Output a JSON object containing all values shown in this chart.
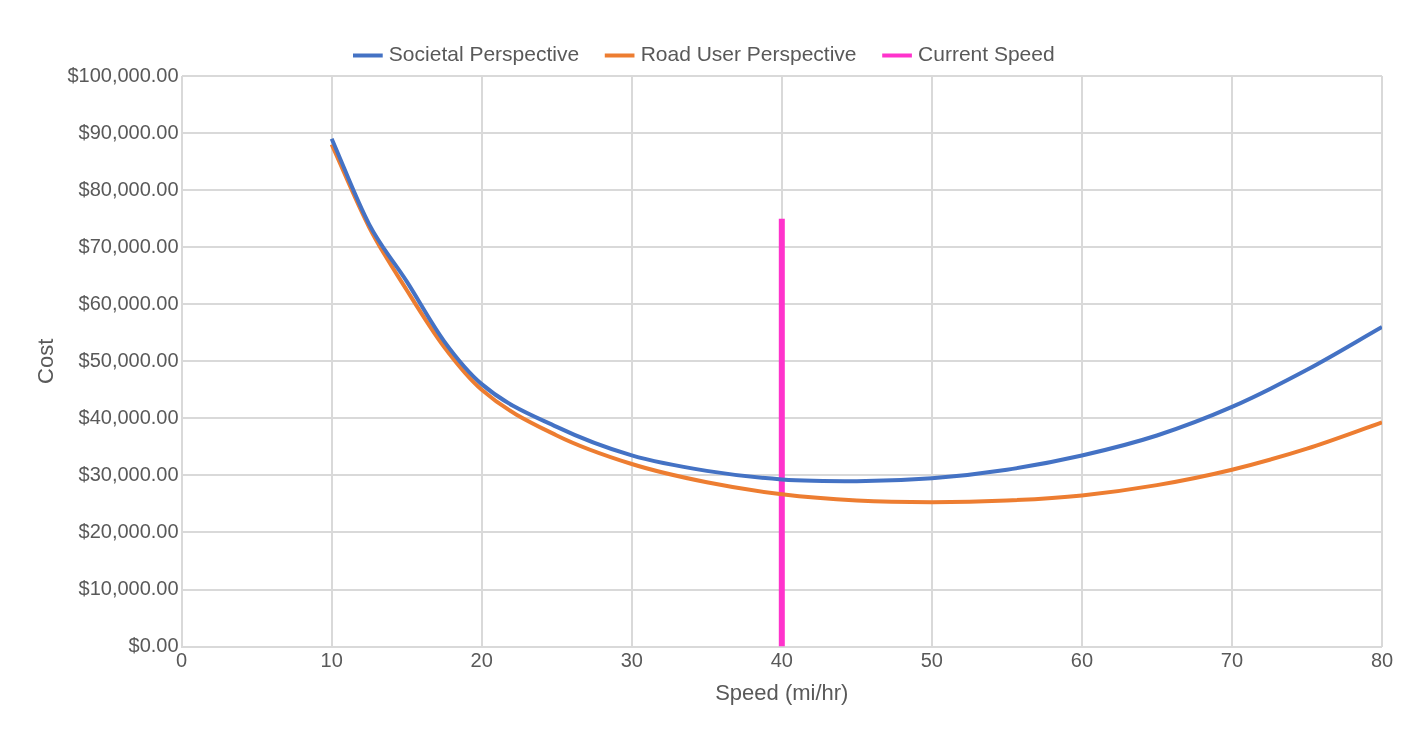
{
  "chart_data": {
    "type": "line",
    "xlabel": "Speed (mi/hr)",
    "ylabel": "Cost",
    "xlim": [
      0,
      80
    ],
    "xticks": [
      0,
      10,
      20,
      30,
      40,
      50,
      60,
      70,
      80
    ],
    "ylim": [
      0,
      100000
    ],
    "yticks": [
      {
        "value": 0,
        "label": "$0.00"
      },
      {
        "value": 10000,
        "label": "$10,000.00"
      },
      {
        "value": 20000,
        "label": "$20,000.00"
      },
      {
        "value": 30000,
        "label": "$30,000.00"
      },
      {
        "value": 40000,
        "label": "$40,000.00"
      },
      {
        "value": 50000,
        "label": "$50,000.00"
      },
      {
        "value": 60000,
        "label": "$60,000.00"
      },
      {
        "value": 70000,
        "label": "$70,000.00"
      },
      {
        "value": 80000,
        "label": "$80,000.00"
      },
      {
        "value": 90000,
        "label": "$90,000.00"
      },
      {
        "value": 100000,
        "label": "$100,000.00"
      }
    ],
    "grid": true,
    "legend": "top",
    "marker": "none",
    "line_style": "solid",
    "series": [
      {
        "name": "Societal Perspective",
        "color": "#4472c4",
        "x": [
          10,
          12.5,
          15,
          17.5,
          20,
          25,
          30,
          35,
          40,
          45,
          50,
          55,
          60,
          65,
          70,
          75,
          80
        ],
        "values": [
          89000,
          74000,
          64000,
          53500,
          46000,
          38500,
          33500,
          30800,
          29300,
          29000,
          29500,
          31000,
          33500,
          37000,
          42000,
          48500,
          56000
        ]
      },
      {
        "name": "Road User Perspective",
        "color": "#ed7d31",
        "x": [
          10,
          12.5,
          15,
          17.5,
          20,
          25,
          30,
          35,
          40,
          45,
          50,
          55,
          60,
          65,
          70,
          75,
          80
        ],
        "values": [
          88000,
          73500,
          62500,
          52500,
          45000,
          37000,
          32000,
          28800,
          26700,
          25600,
          25300,
          25600,
          26500,
          28300,
          31000,
          34700,
          39300
        ]
      },
      {
        "name": "Current Speed",
        "color": "#ff33cc",
        "x": [
          40,
          40
        ],
        "values": [
          0,
          75000
        ]
      }
    ]
  }
}
